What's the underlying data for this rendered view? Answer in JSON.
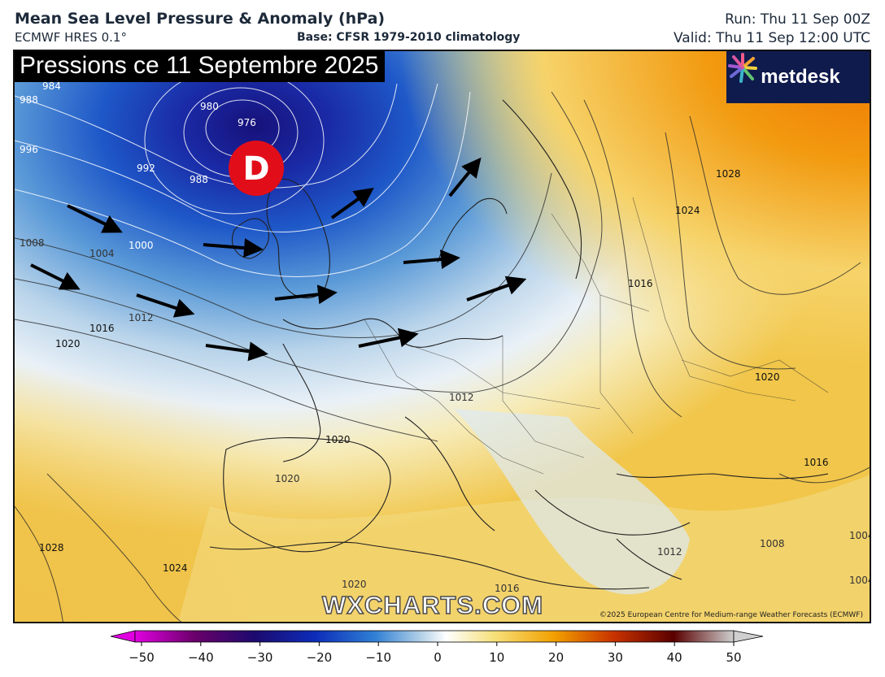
{
  "header": {
    "title": "Mean Sea Level Pressure & Anomaly (hPa)",
    "model": "ECMWF HRES 0.1°",
    "base": "Base: CFSR 1979-2010 climatology",
    "run": "Run: Thu 11 Sep 00Z",
    "valid": "Valid: Thu 11 Sep 12:00 UTC"
  },
  "map": {
    "overlay_title": "Pressions ce 11 Septembre 2025",
    "low_marker": "D",
    "logo_text": "metdesk",
    "watermark": "WXCHARTS.COM",
    "copyright": "©2025 European Centre for Medium-range Weather Forecasts (ECMWF)",
    "isobar_labels": [
      "984",
      "988",
      "980",
      "976",
      "996",
      "992",
      "988",
      "1000",
      "1004",
      "1008",
      "1012",
      "1016",
      "1020",
      "1012",
      "1020",
      "1020",
      "1024",
      "1028",
      "1020",
      "1016",
      "1024",
      "1028",
      "1016",
      "1020",
      "1016",
      "1012",
      "1008",
      "1004",
      "1004"
    ],
    "colors": {
      "low_marker": "#e10e1a",
      "logo_bg": "#0f1b4d",
      "overlay_bg": "#000000"
    }
  },
  "colorbar": {
    "ticks": [
      "−50",
      "−40",
      "−30",
      "−20",
      "−10",
      "0",
      "10",
      "20",
      "30",
      "40",
      "50"
    ],
    "colors": [
      "#e000e0",
      "#6a006a",
      "#1c0a6e",
      "#0d2cb8",
      "#2f7fd4",
      "#b7d3e8",
      "#ffffff",
      "#f6e07a",
      "#f2a000",
      "#c83200",
      "#5a0000",
      "#cfcfcf"
    ]
  }
}
